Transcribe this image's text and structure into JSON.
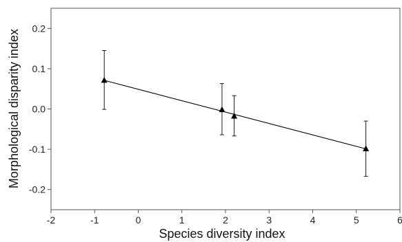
{
  "chart_data": {
    "type": "scatter",
    "title": "",
    "xlabel": "Species diversity index",
    "ylabel": "Morphological disparity index",
    "xlim": [
      -2,
      6
    ],
    "ylim": [
      -0.25,
      0.25
    ],
    "x_ticks": [
      -2,
      -1,
      0,
      1,
      2,
      3,
      4,
      5,
      6
    ],
    "x_tick_labels": [
      "-2",
      "-1",
      "0",
      "1",
      "2",
      "3",
      "4",
      "5",
      "6"
    ],
    "y_ticks": [
      0.2,
      0.1,
      0.0,
      -0.1,
      -0.2
    ],
    "y_tick_labels": [
      "0.2",
      "0.1",
      "0.0",
      "-0.1",
      "-0.2"
    ],
    "grid": false,
    "legend": "none",
    "marker": "triangle",
    "series": [
      {
        "points": [
          {
            "x": -0.78,
            "y": 0.071,
            "err_low": 0.072,
            "err_high": 0.074
          },
          {
            "x": 1.92,
            "y": -0.002,
            "err_low": 0.062,
            "err_high": 0.065
          },
          {
            "x": 2.2,
            "y": -0.018,
            "err_low": 0.049,
            "err_high": 0.051
          },
          {
            "x": 5.22,
            "y": -0.099,
            "err_low": 0.068,
            "err_high": 0.069
          }
        ]
      }
    ],
    "trend_line": {
      "x": [
        -0.78,
        5.22
      ],
      "y": [
        0.071,
        -0.099
      ]
    },
    "colors": {
      "axis": "#555555",
      "marker": "#000000",
      "line": "#000000"
    }
  }
}
